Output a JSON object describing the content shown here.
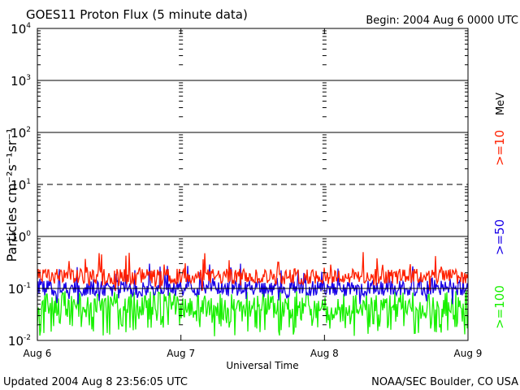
{
  "chart_data": {
    "type": "line",
    "title": "GOES11 Proton Flux (5 minute data)",
    "begin": "Begin: 2004 Aug 6 0000 UTC",
    "ylabel": "Particles cm⁻²s⁻¹sr⁻¹",
    "xlabel": "Universal Time",
    "unit_label": "MeV",
    "y_scale": "log",
    "ylim": [
      0.01,
      10000
    ],
    "ytick_labels": [
      {
        "base": "10",
        "exp": "-2"
      },
      {
        "base": "10",
        "exp": "-1"
      },
      {
        "base": "10",
        "exp": "0"
      },
      {
        "base": "10",
        "exp": "1"
      },
      {
        "base": "10",
        "exp": "2"
      },
      {
        "base": "10",
        "exp": "3"
      },
      {
        "base": "10",
        "exp": "4"
      }
    ],
    "x_range_days": [
      0,
      3
    ],
    "xtick_labels": [
      "Aug 6",
      "Aug 7",
      "Aug 8",
      "Aug 9"
    ],
    "series": [
      {
        "name": ">=10",
        "color": "#ff2000",
        "typical": 0.17,
        "low": 0.09,
        "high": 0.5
      },
      {
        "name": ">=50",
        "color": "#1800e8",
        "typical": 0.1,
        "low": 0.05,
        "high": 0.3
      },
      {
        "name": ">=100",
        "color": "#18f000",
        "typical": 0.045,
        "low": 0.012,
        "high": 0.16
      }
    ]
  },
  "footer": {
    "updated": "Updated 2004 Aug  8 23:56:05 UTC",
    "credit": "NOAA/SEC Boulder, CO USA"
  }
}
